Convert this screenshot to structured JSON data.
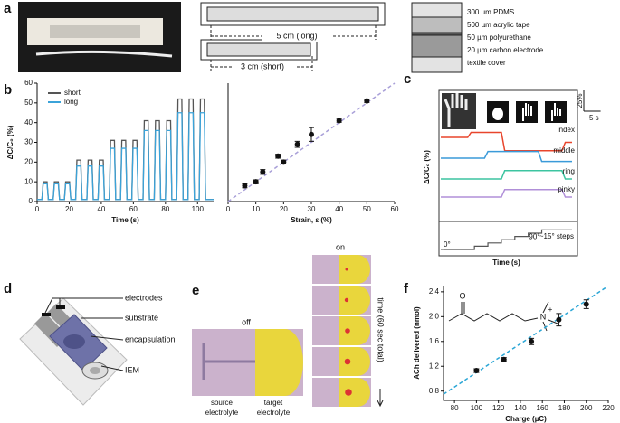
{
  "panel_labels": [
    "a",
    "b",
    "c",
    "d",
    "e",
    "f"
  ],
  "panel_a": {
    "long_label": "5 cm (long)",
    "short_label": "3 cm (short)",
    "layers": [
      "300 µm PDMS",
      "500 µm acrylic tape",
      "50 µm polyurethane",
      "20 µm carbon electrode",
      "textile cover"
    ]
  },
  "panel_d": {
    "labels": [
      "electrodes",
      "substrate",
      "encapsulation",
      "IEM"
    ]
  },
  "panel_e": {
    "off": "off",
    "on": "on",
    "source": [
      "source",
      "electrolyte"
    ],
    "target": [
      "target",
      "electrolyte"
    ],
    "time": "time (60 sec total)"
  },
  "panel_f": {
    "molecule": [
      "O",
      "N",
      "+"
    ]
  },
  "chart_data": [
    {
      "type": "line",
      "ylabel": "ΔC/C₀ (%)",
      "xlabel": "Time (s)",
      "xlim": [
        0,
        110
      ],
      "xticks": [
        0,
        20,
        40,
        60,
        80,
        100
      ],
      "ylim": [
        0,
        60
      ],
      "yticks": [
        0,
        10,
        20,
        30,
        40,
        50,
        60
      ],
      "x": [
        0,
        3,
        3.8,
        6.2,
        7,
        10,
        10.8,
        13.2,
        14,
        17,
        17.8,
        20.2,
        21,
        24,
        24.8,
        27.2,
        28,
        31,
        31.8,
        34.2,
        35,
        38,
        38.8,
        41.2,
        42,
        45,
        45.8,
        48.2,
        49,
        52,
        52.8,
        55.2,
        56,
        59,
        59.8,
        62.2,
        63,
        66,
        66.8,
        69.2,
        70,
        73,
        73.8,
        76.2,
        77,
        80,
        80.8,
        83.2,
        84,
        87,
        87.8,
        90.2,
        91,
        94,
        94.8,
        97.2,
        98,
        101,
        101.8,
        104.2,
        105,
        110
      ],
      "series": [
        {
          "name": "short",
          "color": "#555555",
          "values": [
            1,
            1,
            10,
            10,
            1,
            1,
            10,
            10,
            1,
            1,
            10,
            10,
            1,
            1,
            21,
            21,
            1,
            1,
            21,
            21,
            1,
            1,
            21,
            21,
            1,
            1,
            31,
            31,
            1,
            1,
            31,
            31,
            1,
            1,
            31,
            31,
            1,
            1,
            41,
            41,
            1,
            1,
            41,
            41,
            1,
            1,
            41,
            41,
            1,
            1,
            52,
            52,
            1,
            1,
            52,
            52,
            1,
            1,
            52,
            52,
            1,
            1
          ]
        },
        {
          "name": "long",
          "color": "#3ba3d9",
          "values": [
            1,
            1,
            9,
            9,
            1,
            1,
            9,
            9,
            1,
            1,
            9,
            9,
            1,
            1,
            18,
            18,
            1,
            1,
            18,
            18,
            1,
            1,
            18,
            18,
            1,
            1,
            27,
            27,
            1,
            1,
            27,
            27,
            1,
            1,
            27,
            27,
            1,
            1,
            36,
            36,
            1,
            1,
            36,
            36,
            1,
            1,
            36,
            36,
            1,
            1,
            45,
            45,
            1,
            1,
            45,
            45,
            1,
            1,
            45,
            45,
            1,
            1
          ]
        }
      ]
    },
    {
      "type": "scatter",
      "xlabel": "Strain, ε (%)",
      "xlim": [
        0,
        60
      ],
      "xticks": [
        0,
        10,
        20,
        30,
        40,
        50,
        60
      ],
      "ylim": [
        0,
        60
      ],
      "x": [
        6,
        10,
        12.5,
        18,
        20,
        25,
        30,
        40,
        50
      ],
      "values": [
        8,
        10,
        15,
        23,
        20,
        29,
        34,
        41,
        51
      ],
      "errors": [
        1,
        1,
        1.2,
        1,
        1,
        1.5,
        3.5,
        0.8,
        0.8
      ],
      "color": "#111111",
      "fit": {
        "x": [
          0,
          60
        ],
        "y": [
          0,
          60
        ],
        "color": "#a89fd8"
      }
    },
    {
      "type": "trace",
      "ylabel": "ΔC/C₀ (%)",
      "xlabel": "Time (s)",
      "x": [
        0,
        8,
        9,
        13,
        14,
        18,
        19,
        29,
        30,
        36,
        37,
        39
      ],
      "series": [
        {
          "name": "index",
          "color": "#e8452c",
          "values": [
            0,
            0,
            6,
            6,
            6,
            6,
            -16,
            -16,
            -16,
            -16,
            -6,
            -6
          ]
        },
        {
          "name": "middle",
          "color": "#3a9ad9",
          "values": [
            0,
            0,
            0,
            0,
            8,
            8,
            8,
            8,
            -4,
            -4,
            -4,
            -4
          ]
        },
        {
          "name": "ring",
          "color": "#3cc4a0",
          "values": [
            0,
            0,
            0,
            0,
            0,
            0,
            10,
            10,
            10,
            10,
            0,
            0
          ]
        },
        {
          "name": "pinky",
          "color": "#b08fd8",
          "values": [
            0,
            0,
            0,
            0,
            0,
            0,
            9,
            9,
            9,
            9,
            0,
            0
          ]
        }
      ],
      "angle": {
        "x": [
          0,
          10,
          10,
          14,
          14,
          18,
          18,
          22,
          22,
          26,
          26,
          30,
          30,
          39
        ],
        "values": [
          0,
          0,
          15,
          15,
          30,
          30,
          45,
          45,
          60,
          60,
          75,
          75,
          90,
          90
        ],
        "color": "#555555",
        "ticks": [
          {
            "value": 0,
            "label": "0°"
          },
          {
            "value": 90,
            "label": "90°"
          }
        ],
        "steps_label": "~15° steps"
      },
      "scale_bar": {
        "value": 25,
        "value_label": "25%",
        "time": 5,
        "time_label": "5 s"
      }
    },
    {
      "type": "scatter",
      "xlabel": "Charge (µC)",
      "ylabel": "ACh delivered (nmol)",
      "xlim": [
        70,
        220
      ],
      "xticks": [
        80,
        100,
        120,
        140,
        160,
        180,
        200,
        220
      ],
      "ylim": [
        0.65,
        2.5
      ],
      "yticks": [
        0.8,
        1.2,
        1.6,
        {
          "value": 2,
          "label": "2.0"
        },
        2.4
      ],
      "x": [
        100,
        125,
        150,
        175,
        200
      ],
      "values": [
        1.13,
        1.31,
        1.6,
        1.95,
        2.2
      ],
      "errors": [
        0.03,
        0.03,
        0.05,
        0.1,
        0.07
      ],
      "color": "#111111",
      "fit": {
        "x": [
          70,
          218
        ],
        "y": [
          0.75,
          2.47
        ],
        "color": "#2aa6d6"
      }
    }
  ]
}
